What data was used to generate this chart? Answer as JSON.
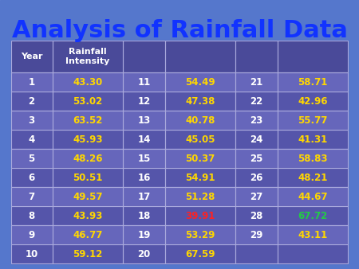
{
  "title": "Analysis of Rainfall Data",
  "title_color": "#1a1aff",
  "title_fontsize": 22,
  "col_headers": [
    "Year",
    "Rainfall\nIntensity",
    "",
    "",
    "",
    ""
  ],
  "table_data": [
    [
      "1",
      "43.30",
      "11",
      "54.49",
      "21",
      "58.71"
    ],
    [
      "2",
      "53.02",
      "12",
      "47.38",
      "22",
      "42.96"
    ],
    [
      "3",
      "63.52",
      "13",
      "40.78",
      "23",
      "55.77"
    ],
    [
      "4",
      "45.93",
      "14",
      "45.05",
      "24",
      "41.31"
    ],
    [
      "5",
      "48.26",
      "15",
      "50.37",
      "25",
      "58.83"
    ],
    [
      "6",
      "50.51",
      "16",
      "54.91",
      "26",
      "48.21"
    ],
    [
      "7",
      "49.57",
      "17",
      "51.28",
      "27",
      "44.67"
    ],
    [
      "8",
      "43.93",
      "18",
      "39.91",
      "28",
      "67.72"
    ],
    [
      "9",
      "46.77",
      "19",
      "53.29",
      "29",
      "43.11"
    ],
    [
      "10",
      "59.12",
      "20",
      "67.59",
      "",
      ""
    ]
  ],
  "cell_colors": [
    [
      "white",
      "gold",
      "white",
      "gold",
      "white",
      "gold"
    ],
    [
      "white",
      "gold",
      "white",
      "gold",
      "white",
      "gold"
    ],
    [
      "white",
      "gold",
      "white",
      "gold",
      "white",
      "gold"
    ],
    [
      "white",
      "gold",
      "white",
      "gold",
      "white",
      "gold"
    ],
    [
      "white",
      "gold",
      "white",
      "gold",
      "white",
      "gold"
    ],
    [
      "white",
      "gold",
      "white",
      "gold",
      "white",
      "gold"
    ],
    [
      "white",
      "gold",
      "white",
      "gold",
      "white",
      "gold"
    ],
    [
      "white",
      "gold",
      "white",
      "red",
      "white",
      "green"
    ],
    [
      "white",
      "gold",
      "white",
      "gold",
      "white",
      "gold"
    ],
    [
      "white",
      "gold",
      "white",
      "gold",
      "white",
      "gold"
    ]
  ],
  "bg_color_even": "#6666cc",
  "bg_color_odd": "#5555bb",
  "header_bg": "#4444aa",
  "border_color": "#aaaaee",
  "year_col_color": "white",
  "rainfall_col_color": "#FFD700",
  "num_col_color": "white",
  "value_col_color": "#FFD700"
}
